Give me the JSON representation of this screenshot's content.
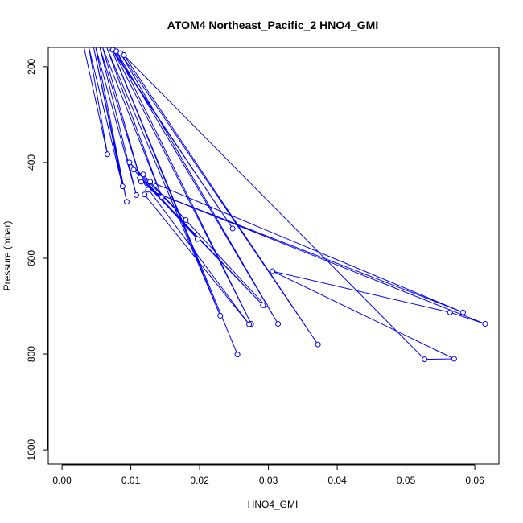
{
  "chart_data": {
    "type": "scatter",
    "title": "ATOM4 Northeast_Pacific_2 HNO4_GMI",
    "xlabel": "HNO4_GMI",
    "ylabel": "Pressure (mbar)",
    "xlim": [
      -0.002,
      0.0635
    ],
    "ylim": [
      1030,
      160
    ],
    "y_reversed": true,
    "xticks": [
      0.0,
      0.01,
      0.02,
      0.03,
      0.04,
      0.05,
      0.06
    ],
    "xtick_labels": [
      "0.00",
      "0.01",
      "0.02",
      "0.03",
      "0.04",
      "0.05",
      "0.06"
    ],
    "yticks": [
      200,
      400,
      600,
      800,
      1000
    ],
    "ytick_labels": [
      "200",
      "400",
      "600",
      "800",
      "1000"
    ],
    "color": "#0000ff",
    "marker": "open-circle",
    "connected": true,
    "grid": false,
    "series": [
      {
        "x": [
          0.0032,
          0.0066,
          0.0039,
          0.0088,
          0.0046,
          0.0094,
          0.0049,
          0.0108,
          0.0055,
          0.0115,
          0.0059,
          0.0145,
          0.0065,
          0.023,
          0.0071,
          0.0255,
          0.0072,
          0.0248,
          0.0074,
          0.0275,
          0.0079,
          0.0314,
          0.0085,
          0.0372,
          0.009,
          0.0527,
          0.057,
          0.0306,
          0.0564,
          0.0615,
          0.0125,
          0.0583,
          0.0128,
          0.0295,
          0.0118,
          0.018,
          0.0098,
          0.0197,
          0.0104,
          0.0292,
          0.0113,
          0.0272,
          0.012
        ],
        "y": [
          160,
          383,
          160,
          450,
          160,
          482,
          160,
          468,
          160,
          440,
          160,
          472,
          160,
          720,
          160,
          801,
          163,
          538,
          165,
          737,
          168,
          737,
          172,
          780,
          176,
          811,
          810,
          627,
          713,
          737,
          457,
          713,
          440,
          698,
          425,
          520,
          400,
          560,
          415,
          698,
          432,
          738,
          467
        ]
      }
    ]
  }
}
